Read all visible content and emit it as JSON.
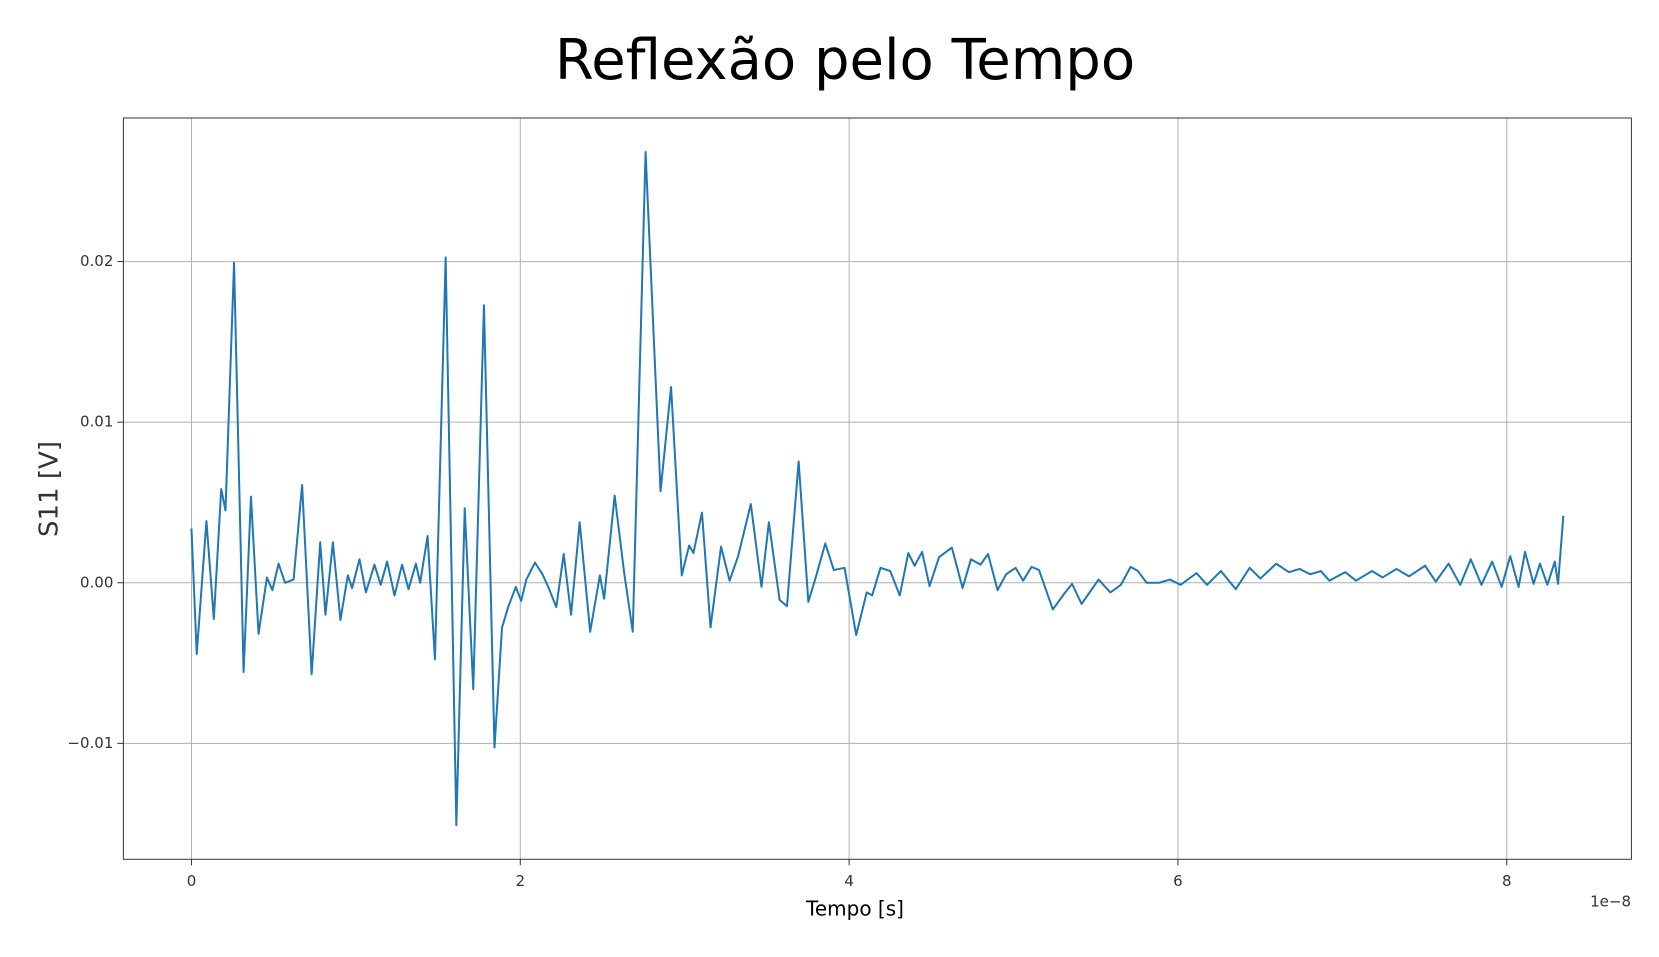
{
  "chart_data": {
    "type": "line",
    "title": "Reflexão pelo Tempo",
    "x_label": "Tempo [s]",
    "y_label": "S11 [V]",
    "x_offset_label": "1e−8",
    "xlim": [
      -0.414,
      8.758
    ],
    "ylim": [
      -0.01722,
      0.02894
    ],
    "xticks": [
      0,
      2,
      4,
      6,
      8
    ],
    "yticks": [
      {
        "value": -0.01,
        "label": "−0.01"
      },
      {
        "value": 0,
        "label": "0.00"
      },
      {
        "value": 0.01,
        "label": "0.01"
      },
      {
        "value": 0.02,
        "label": "0.02"
      }
    ],
    "grid": true,
    "x": [
      0,
      0.032,
      0.091,
      0.136,
      0.181,
      0.207,
      0.259,
      0.317,
      0.362,
      0.408,
      0.459,
      0.492,
      0.53,
      0.569,
      0.621,
      0.673,
      0.731,
      0.783,
      0.815,
      0.86,
      0.906,
      0.951,
      0.977,
      1.022,
      1.061,
      1.113,
      1.151,
      1.19,
      1.235,
      1.281,
      1.32,
      1.365,
      1.391,
      1.436,
      1.481,
      1.546,
      1.611,
      1.662,
      1.714,
      1.779,
      1.843,
      1.889,
      1.928,
      1.973,
      2.005,
      2.037,
      2.089,
      2.135,
      2.173,
      2.219,
      2.264,
      2.309,
      2.361,
      2.425,
      2.484,
      2.51,
      2.574,
      2.633,
      2.684,
      2.762,
      2.853,
      2.917,
      2.982,
      3.027,
      3.053,
      3.105,
      3.157,
      3.221,
      3.273,
      3.325,
      3.402,
      3.467,
      3.512,
      3.577,
      3.622,
      3.693,
      3.752,
      3.797,
      3.855,
      3.907,
      3.972,
      4.043,
      4.107,
      4.14,
      4.191,
      4.25,
      4.308,
      4.36,
      4.398,
      4.444,
      4.489,
      4.547,
      4.625,
      4.69,
      4.741,
      4.799,
      4.845,
      4.903,
      4.955,
      5.013,
      5.058,
      5.11,
      5.155,
      5.239,
      5.31,
      5.356,
      5.414,
      5.517,
      5.589,
      5.653,
      5.712,
      5.757,
      5.809,
      5.886,
      5.951,
      6.016,
      6.113,
      6.177,
      6.261,
      6.352,
      6.436,
      6.501,
      6.598,
      6.675,
      6.74,
      6.805,
      6.869,
      6.921,
      7.018,
      7.083,
      7.18,
      7.245,
      7.329,
      7.406,
      7.503,
      7.568,
      7.646,
      7.717,
      7.781,
      7.846,
      7.911,
      7.969,
      8.021,
      8.072,
      8.111,
      8.163,
      8.202,
      8.247,
      8.292,
      8.312,
      8.344
    ],
    "series": [
      {
        "color": "#1f77b4",
        "values": [
          0.00338,
          -0.00444,
          0.00384,
          -0.00225,
          0.00583,
          0.0045,
          0.01993,
          -0.00556,
          0.00536,
          -0.00318,
          0.00033,
          -0.00046,
          0.00119,
          0,
          0.0002,
          0.00609,
          -0.0057,
          0.00252,
          -0.00199,
          0.00252,
          -0.00232,
          0.00046,
          -0.00033,
          0.00146,
          -0.0006,
          0.00113,
          -0.00013,
          0.00132,
          -0.00079,
          0.00113,
          -0.0004,
          0.00119,
          0,
          0.00291,
          -0.00477,
          0.02026,
          -0.0151,
          0.00464,
          -0.00662,
          0.01728,
          -0.01026,
          -0.00278,
          -0.00146,
          -0.00026,
          -0.00113,
          0.0002,
          0.00126,
          0.00053,
          -0.00033,
          -0.00152,
          0.00179,
          -0.00199,
          0.00377,
          -0.00305,
          0.00046,
          -0.00099,
          0.00543,
          0.00053,
          -0.00305,
          0.02682,
          0.0057,
          0.01219,
          0.00046,
          0.00232,
          0.00185,
          0.00437,
          -0.00278,
          0.00225,
          0.00013,
          0.00166,
          0.0049,
          -0.00026,
          0.00377,
          -0.00106,
          -0.00146,
          0.00755,
          -0.00119,
          0.00033,
          0.00245,
          0.00079,
          0.00093,
          -0.00325,
          -0.0006,
          -0.00079,
          0.00093,
          0.00073,
          -0.00079,
          0.00185,
          0.00106,
          0.00192,
          -0.0002,
          0.00159,
          0.00219,
          -0.00033,
          0.00146,
          0.00113,
          0.00179,
          -0.00046,
          0.00053,
          0.00093,
          0.00013,
          0.00099,
          0.00079,
          -0.00166,
          -0.00066,
          -7e-05,
          -0.00132,
          0.0002,
          -0.0006,
          -0.00013,
          0.00099,
          0.00073,
          0,
          0,
          0.0002,
          -0.00013,
          0.0006,
          -0.00013,
          0.00073,
          -0.0004,
          0.00093,
          0.00026,
          0.00119,
          0.00066,
          0.00086,
          0.00053,
          0.00073,
          0.00013,
          0.00066,
          0.00013,
          0.00073,
          0.00033,
          0.00086,
          0.0004,
          0.00106,
          7e-05,
          0.00119,
          -0.00013,
          0.00146,
          -0.00013,
          0.00132,
          -0.00026,
          0.00166,
          -0.00026,
          0.00192,
          -7e-05,
          0.00119,
          -0.00013,
          0.00132,
          -7e-05,
          0.00417
        ]
      }
    ]
  }
}
